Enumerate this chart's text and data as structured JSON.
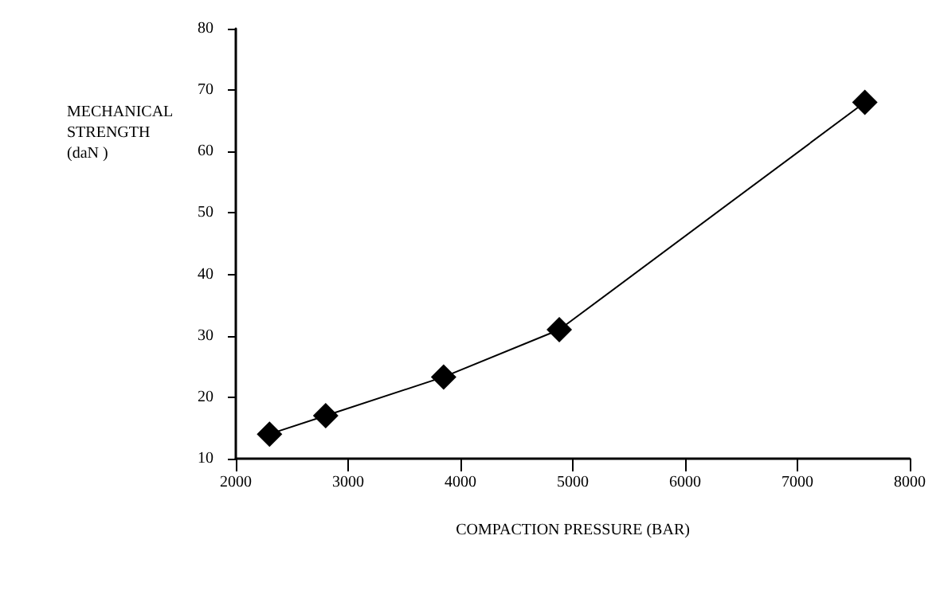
{
  "chart_data": {
    "type": "line",
    "xlabel": "COMPACTION PRESSURE (BAR)",
    "ylabel": "MECHANICAL\nSTRENGTH\n(daN )",
    "x": [
      2300,
      2800,
      3850,
      4880,
      7600
    ],
    "series": [
      {
        "color": "#000000",
        "values": [
          14,
          17,
          23.3,
          31,
          68
        ]
      }
    ],
    "xlim": [
      2000,
      8000
    ],
    "xticks": [
      2000,
      3000,
      4000,
      5000,
      6000,
      7000,
      8000
    ],
    "ylim": [
      10,
      80
    ],
    "yticks": [
      10,
      20,
      30,
      40,
      50,
      60,
      70,
      80
    ],
    "marker": "diamond",
    "line_style": "solid",
    "grid": false
  }
}
